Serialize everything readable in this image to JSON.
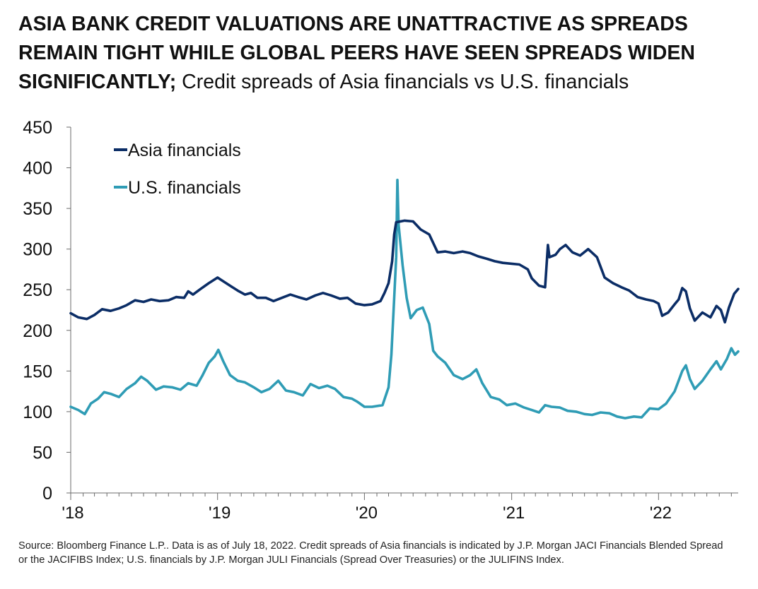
{
  "title": {
    "bold": "ASIA BANK CREDIT VALUATIONS ARE UNATTRACTIVE AS SPREADS REMAIN TIGHT WHILE GLOBAL PEERS HAVE SEEN SPREADS WIDEN SIGNIFICANTLY;",
    "rest": " Credit spreads of Asia financials vs U.S. financials"
  },
  "source": "Source: Bloomberg Finance L.P.. Data is as of July 18, 2022. Credit spreads of Asia financials is indicated by J.P. Morgan JACI Financials Blended Spread or the JACIFIBS Index; U.S. financials by J.P. Morgan JULI Financials (Spread Over Treasuries) or the JULIFINS Index.",
  "chart_data": {
    "type": "line",
    "title": "",
    "xlabel": "",
    "ylabel": "",
    "xlim": [
      "2018-01-01",
      "2022-07-18"
    ],
    "ylim": [
      0,
      450
    ],
    "yticks": [
      0,
      50,
      100,
      150,
      200,
      250,
      300,
      350,
      400,
      450
    ],
    "xticks": [
      {
        "date": "2018-01-01",
        "label": "'18"
      },
      {
        "date": "2019-01-01",
        "label": "'19"
      },
      {
        "date": "2020-01-01",
        "label": "'20"
      },
      {
        "date": "2021-01-01",
        "label": "'21"
      },
      {
        "date": "2022-01-01",
        "label": "'22"
      }
    ],
    "grid": false,
    "legend_position": "top-left",
    "series": [
      {
        "name": "Asia financials",
        "color": "#0b2d66",
        "points": [
          [
            "2018-01-01",
            221
          ],
          [
            "2018-01-20",
            216
          ],
          [
            "2018-02-10",
            214
          ],
          [
            "2018-03-01",
            219
          ],
          [
            "2018-03-20",
            226
          ],
          [
            "2018-04-10",
            224
          ],
          [
            "2018-05-01",
            227
          ],
          [
            "2018-05-20",
            231
          ],
          [
            "2018-06-10",
            237
          ],
          [
            "2018-07-01",
            235
          ],
          [
            "2018-07-20",
            238
          ],
          [
            "2018-08-10",
            236
          ],
          [
            "2018-09-01",
            237
          ],
          [
            "2018-09-20",
            241
          ],
          [
            "2018-10-10",
            240
          ],
          [
            "2018-10-20",
            248
          ],
          [
            "2018-11-01",
            244
          ],
          [
            "2018-11-20",
            251
          ],
          [
            "2018-12-10",
            258
          ],
          [
            "2019-01-01",
            265
          ],
          [
            "2019-01-10",
            262
          ],
          [
            "2019-02-01",
            255
          ],
          [
            "2019-02-20",
            249
          ],
          [
            "2019-03-10",
            244
          ],
          [
            "2019-03-25",
            246
          ],
          [
            "2019-04-10",
            240
          ],
          [
            "2019-05-01",
            240
          ],
          [
            "2019-05-20",
            236
          ],
          [
            "2019-06-10",
            240
          ],
          [
            "2019-07-01",
            244
          ],
          [
            "2019-07-20",
            241
          ],
          [
            "2019-08-10",
            238
          ],
          [
            "2019-09-01",
            243
          ],
          [
            "2019-09-20",
            246
          ],
          [
            "2019-10-10",
            243
          ],
          [
            "2019-11-01",
            239
          ],
          [
            "2019-11-20",
            240
          ],
          [
            "2019-12-10",
            233
          ],
          [
            "2020-01-01",
            231
          ],
          [
            "2020-01-20",
            232
          ],
          [
            "2020-02-10",
            236
          ],
          [
            "2020-02-20",
            246
          ],
          [
            "2020-03-01",
            258
          ],
          [
            "2020-03-10",
            285
          ],
          [
            "2020-03-15",
            318
          ],
          [
            "2020-03-20",
            333
          ],
          [
            "2020-04-10",
            335
          ],
          [
            "2020-05-01",
            334
          ],
          [
            "2020-05-20",
            324
          ],
          [
            "2020-06-10",
            318
          ],
          [
            "2020-07-01",
            296
          ],
          [
            "2020-07-20",
            297
          ],
          [
            "2020-08-10",
            295
          ],
          [
            "2020-09-01",
            297
          ],
          [
            "2020-09-20",
            295
          ],
          [
            "2020-10-10",
            291
          ],
          [
            "2020-11-01",
            288
          ],
          [
            "2020-11-20",
            285
          ],
          [
            "2020-12-10",
            283
          ],
          [
            "2021-01-01",
            282
          ],
          [
            "2021-01-20",
            281
          ],
          [
            "2021-02-10",
            275
          ],
          [
            "2021-02-20",
            264
          ],
          [
            "2021-03-10",
            255
          ],
          [
            "2021-03-25",
            253
          ],
          [
            "2021-04-01",
            305
          ],
          [
            "2021-04-05",
            290
          ],
          [
            "2021-04-20",
            293
          ],
          [
            "2021-05-01",
            300
          ],
          [
            "2021-05-15",
            305
          ],
          [
            "2021-06-01",
            296
          ],
          [
            "2021-06-20",
            292
          ],
          [
            "2021-07-10",
            300
          ],
          [
            "2021-08-01",
            290
          ],
          [
            "2021-08-20",
            265
          ],
          [
            "2021-09-10",
            258
          ],
          [
            "2021-10-01",
            253
          ],
          [
            "2021-10-20",
            249
          ],
          [
            "2021-11-10",
            241
          ],
          [
            "2021-12-01",
            238
          ],
          [
            "2021-12-20",
            236
          ],
          [
            "2022-01-01",
            233
          ],
          [
            "2022-01-10",
            218
          ],
          [
            "2022-01-25",
            222
          ],
          [
            "2022-02-10",
            232
          ],
          [
            "2022-02-20",
            238
          ],
          [
            "2022-03-01",
            252
          ],
          [
            "2022-03-10",
            248
          ],
          [
            "2022-03-20",
            227
          ],
          [
            "2022-04-01",
            212
          ],
          [
            "2022-04-20",
            222
          ],
          [
            "2022-05-10",
            216
          ],
          [
            "2022-05-25",
            230
          ],
          [
            "2022-06-05",
            225
          ],
          [
            "2022-06-15",
            210
          ],
          [
            "2022-06-25",
            228
          ],
          [
            "2022-07-08",
            245
          ],
          [
            "2022-07-18",
            251
          ]
        ]
      },
      {
        "name": "U.S. financials",
        "color": "#2f9cb5",
        "points": [
          [
            "2018-01-01",
            106
          ],
          [
            "2018-01-20",
            102
          ],
          [
            "2018-02-05",
            97
          ],
          [
            "2018-02-20",
            110
          ],
          [
            "2018-03-10",
            116
          ],
          [
            "2018-03-25",
            124
          ],
          [
            "2018-04-10",
            122
          ],
          [
            "2018-05-01",
            118
          ],
          [
            "2018-05-20",
            128
          ],
          [
            "2018-06-10",
            135
          ],
          [
            "2018-06-25",
            143
          ],
          [
            "2018-07-10",
            138
          ],
          [
            "2018-08-01",
            127
          ],
          [
            "2018-08-20",
            131
          ],
          [
            "2018-09-10",
            130
          ],
          [
            "2018-10-01",
            127
          ],
          [
            "2018-10-20",
            135
          ],
          [
            "2018-11-10",
            132
          ],
          [
            "2018-11-25",
            145
          ],
          [
            "2018-12-10",
            160
          ],
          [
            "2018-12-25",
            168
          ],
          [
            "2019-01-03",
            176
          ],
          [
            "2019-01-15",
            162
          ],
          [
            "2019-02-01",
            145
          ],
          [
            "2019-02-20",
            138
          ],
          [
            "2019-03-10",
            136
          ],
          [
            "2019-04-01",
            130
          ],
          [
            "2019-04-20",
            124
          ],
          [
            "2019-05-10",
            128
          ],
          [
            "2019-06-01",
            138
          ],
          [
            "2019-06-20",
            126
          ],
          [
            "2019-07-10",
            124
          ],
          [
            "2019-08-01",
            120
          ],
          [
            "2019-08-20",
            134
          ],
          [
            "2019-09-10",
            129
          ],
          [
            "2019-10-01",
            132
          ],
          [
            "2019-10-20",
            128
          ],
          [
            "2019-11-10",
            118
          ],
          [
            "2019-12-01",
            116
          ],
          [
            "2019-12-15",
            112
          ],
          [
            "2020-01-01",
            106
          ],
          [
            "2020-01-20",
            106
          ],
          [
            "2020-02-15",
            108
          ],
          [
            "2020-03-01",
            130
          ],
          [
            "2020-03-08",
            170
          ],
          [
            "2020-03-15",
            240
          ],
          [
            "2020-03-20",
            290
          ],
          [
            "2020-03-23",
            385
          ],
          [
            "2020-03-26",
            330
          ],
          [
            "2020-04-05",
            280
          ],
          [
            "2020-04-15",
            240
          ],
          [
            "2020-04-25",
            215
          ],
          [
            "2020-05-10",
            225
          ],
          [
            "2020-05-25",
            228
          ],
          [
            "2020-06-10",
            208
          ],
          [
            "2020-06-20",
            175
          ],
          [
            "2020-07-01",
            168
          ],
          [
            "2020-07-20",
            160
          ],
          [
            "2020-08-10",
            145
          ],
          [
            "2020-09-01",
            140
          ],
          [
            "2020-09-20",
            145
          ],
          [
            "2020-10-05",
            152
          ],
          [
            "2020-10-20",
            135
          ],
          [
            "2020-11-10",
            118
          ],
          [
            "2020-12-01",
            115
          ],
          [
            "2020-12-20",
            108
          ],
          [
            "2021-01-10",
            110
          ],
          [
            "2021-02-01",
            105
          ],
          [
            "2021-02-20",
            102
          ],
          [
            "2021-03-10",
            99
          ],
          [
            "2021-03-25",
            108
          ],
          [
            "2021-04-10",
            106
          ],
          [
            "2021-05-01",
            105
          ],
          [
            "2021-05-20",
            101
          ],
          [
            "2021-06-10",
            100
          ],
          [
            "2021-07-01",
            97
          ],
          [
            "2021-07-20",
            96
          ],
          [
            "2021-08-10",
            99
          ],
          [
            "2021-09-01",
            98
          ],
          [
            "2021-09-20",
            94
          ],
          [
            "2021-10-10",
            92
          ],
          [
            "2021-11-01",
            94
          ],
          [
            "2021-11-20",
            93
          ],
          [
            "2021-12-10",
            104
          ],
          [
            "2022-01-01",
            103
          ],
          [
            "2022-01-20",
            110
          ],
          [
            "2022-02-10",
            125
          ],
          [
            "2022-03-01",
            150
          ],
          [
            "2022-03-10",
            157
          ],
          [
            "2022-03-20",
            140
          ],
          [
            "2022-04-01",
            128
          ],
          [
            "2022-04-20",
            138
          ],
          [
            "2022-05-10",
            152
          ],
          [
            "2022-05-25",
            162
          ],
          [
            "2022-06-05",
            152
          ],
          [
            "2022-06-20",
            165
          ],
          [
            "2022-07-01",
            178
          ],
          [
            "2022-07-10",
            170
          ],
          [
            "2022-07-18",
            174
          ]
        ]
      }
    ]
  }
}
